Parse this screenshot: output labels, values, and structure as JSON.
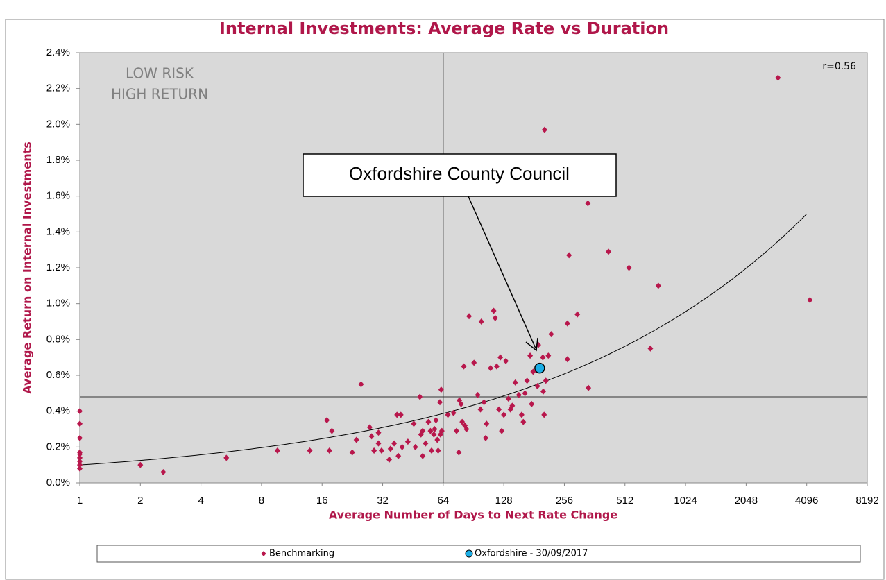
{
  "chart_data": {
    "type": "scatter",
    "title": "Internal Investments: Average Rate vs Duration",
    "x_label": "Average Number of Days to Next Rate Change",
    "y_label": "Average Return on Internal Investments",
    "xlim": [
      1,
      8192
    ],
    "xticks": [
      1,
      2,
      4,
      8,
      16,
      32,
      64,
      128,
      256,
      512,
      1024,
      2048,
      4096,
      8192
    ],
    "x_log_base": 2,
    "ylim": [
      0,
      2.4
    ],
    "yticks": [
      {
        "value": 0,
        "label": "0.0%"
      },
      {
        "value": 0.2,
        "label": "0.2%"
      },
      {
        "value": 0.4,
        "label": "0.4%"
      },
      {
        "value": 0.6,
        "label": "0.6%"
      },
      {
        "value": 0.8,
        "label": "0.8%"
      },
      {
        "value": 1.0,
        "label": "1.0%"
      },
      {
        "value": 1.2,
        "label": "1.2%"
      },
      {
        "value": 1.4,
        "label": "1.4%"
      },
      {
        "value": 1.6,
        "label": "1.6%"
      },
      {
        "value": 1.8,
        "label": "1.8%"
      },
      {
        "value": 2.0,
        "label": "2.0%"
      },
      {
        "value": 2.2,
        "label": "2.2%"
      },
      {
        "value": 2.4,
        "label": "2.4%"
      }
    ],
    "reference_lines": {
      "x": 64,
      "y": 0.48
    },
    "trendline": {
      "type": "power",
      "a": 0.1,
      "b": 0.3256,
      "xrange": [
        1,
        4096
      ]
    },
    "annotations": {
      "quadrant": [
        "LOW RISK",
        "HIGH RETURN"
      ],
      "r": "r=0.56",
      "callout": "Oxfordshire County Council"
    },
    "legend": "bottom",
    "series": [
      {
        "name": "Benchmarking",
        "color": "#b8174c",
        "marker": "diamond",
        "x": [
          1,
          1,
          1,
          1,
          1,
          1,
          1,
          1,
          1,
          2,
          2.6,
          5.35,
          9.6,
          13.9,
          16.9,
          17.4,
          17.9,
          22.6,
          23.7,
          25,
          27.6,
          28.2,
          29,
          30.5,
          30.5,
          31.6,
          34.5,
          35,
          36.5,
          37.7,
          38.3,
          39.4,
          40,
          42.7,
          45.7,
          46.5,
          49,
          49.6,
          50.6,
          50.6,
          52.3,
          54,
          55.3,
          56,
          57.5,
          58,
          58.9,
          59.8,
          60.4,
          61.6,
          62.5,
          62,
          63,
          67.5,
          72,
          74.5,
          76.5,
          77,
          78.5,
          79.5,
          81,
          82,
          83.5,
          86,
          91,
          95,
          98,
          99,
          102,
          104,
          105,
          110,
          114,
          116,
          118,
          121,
          123,
          125,
          128,
          131,
          135,
          138,
          141,
          146,
          152,
          157,
          160,
          163,
          167,
          173,
          176,
          179,
          188,
          190,
          200,
          201,
          203,
          204,
          207,
          213,
          220,
          265,
          265,
          270,
          297,
          335,
          337,
          424,
          536,
          685,
          750,
          2950,
          4250
        ],
        "values": [
          0.4,
          0.33,
          0.25,
          0.17,
          0.16,
          0.14,
          0.12,
          0.1,
          0.08,
          0.1,
          0.06,
          0.14,
          0.18,
          0.18,
          0.35,
          0.18,
          0.29,
          0.17,
          0.24,
          0.55,
          0.31,
          0.26,
          0.18,
          0.28,
          0.22,
          0.18,
          0.13,
          0.19,
          0.22,
          0.38,
          0.15,
          0.38,
          0.2,
          0.23,
          0.33,
          0.2,
          0.48,
          0.27,
          0.15,
          0.29,
          0.22,
          0.34,
          0.29,
          0.18,
          0.27,
          0.3,
          0.35,
          0.24,
          0.18,
          0.45,
          0.52,
          0.27,
          0.29,
          0.38,
          0.39,
          0.29,
          0.17,
          0.46,
          0.44,
          0.34,
          0.65,
          0.32,
          0.3,
          0.93,
          0.67,
          0.49,
          0.41,
          0.9,
          0.45,
          0.25,
          0.33,
          0.64,
          0.96,
          0.92,
          0.65,
          0.41,
          0.7,
          0.29,
          0.38,
          0.68,
          0.47,
          0.41,
          0.43,
          0.56,
          0.49,
          0.38,
          0.34,
          0.5,
          0.57,
          0.71,
          0.44,
          0.62,
          0.54,
          0.77,
          0.7,
          0.51,
          0.38,
          1.97,
          0.57,
          0.71,
          0.83,
          0.69,
          0.89,
          1.27,
          0.94,
          1.56,
          0.53,
          1.29,
          1.2,
          0.75,
          1.1,
          2.26,
          1.02
        ]
      },
      {
        "name": "Oxfordshire - 30/09/2017",
        "color": "#1aaee6",
        "marker": "circle",
        "x": [
          193
        ],
        "values": [
          0.64
        ]
      }
    ]
  }
}
